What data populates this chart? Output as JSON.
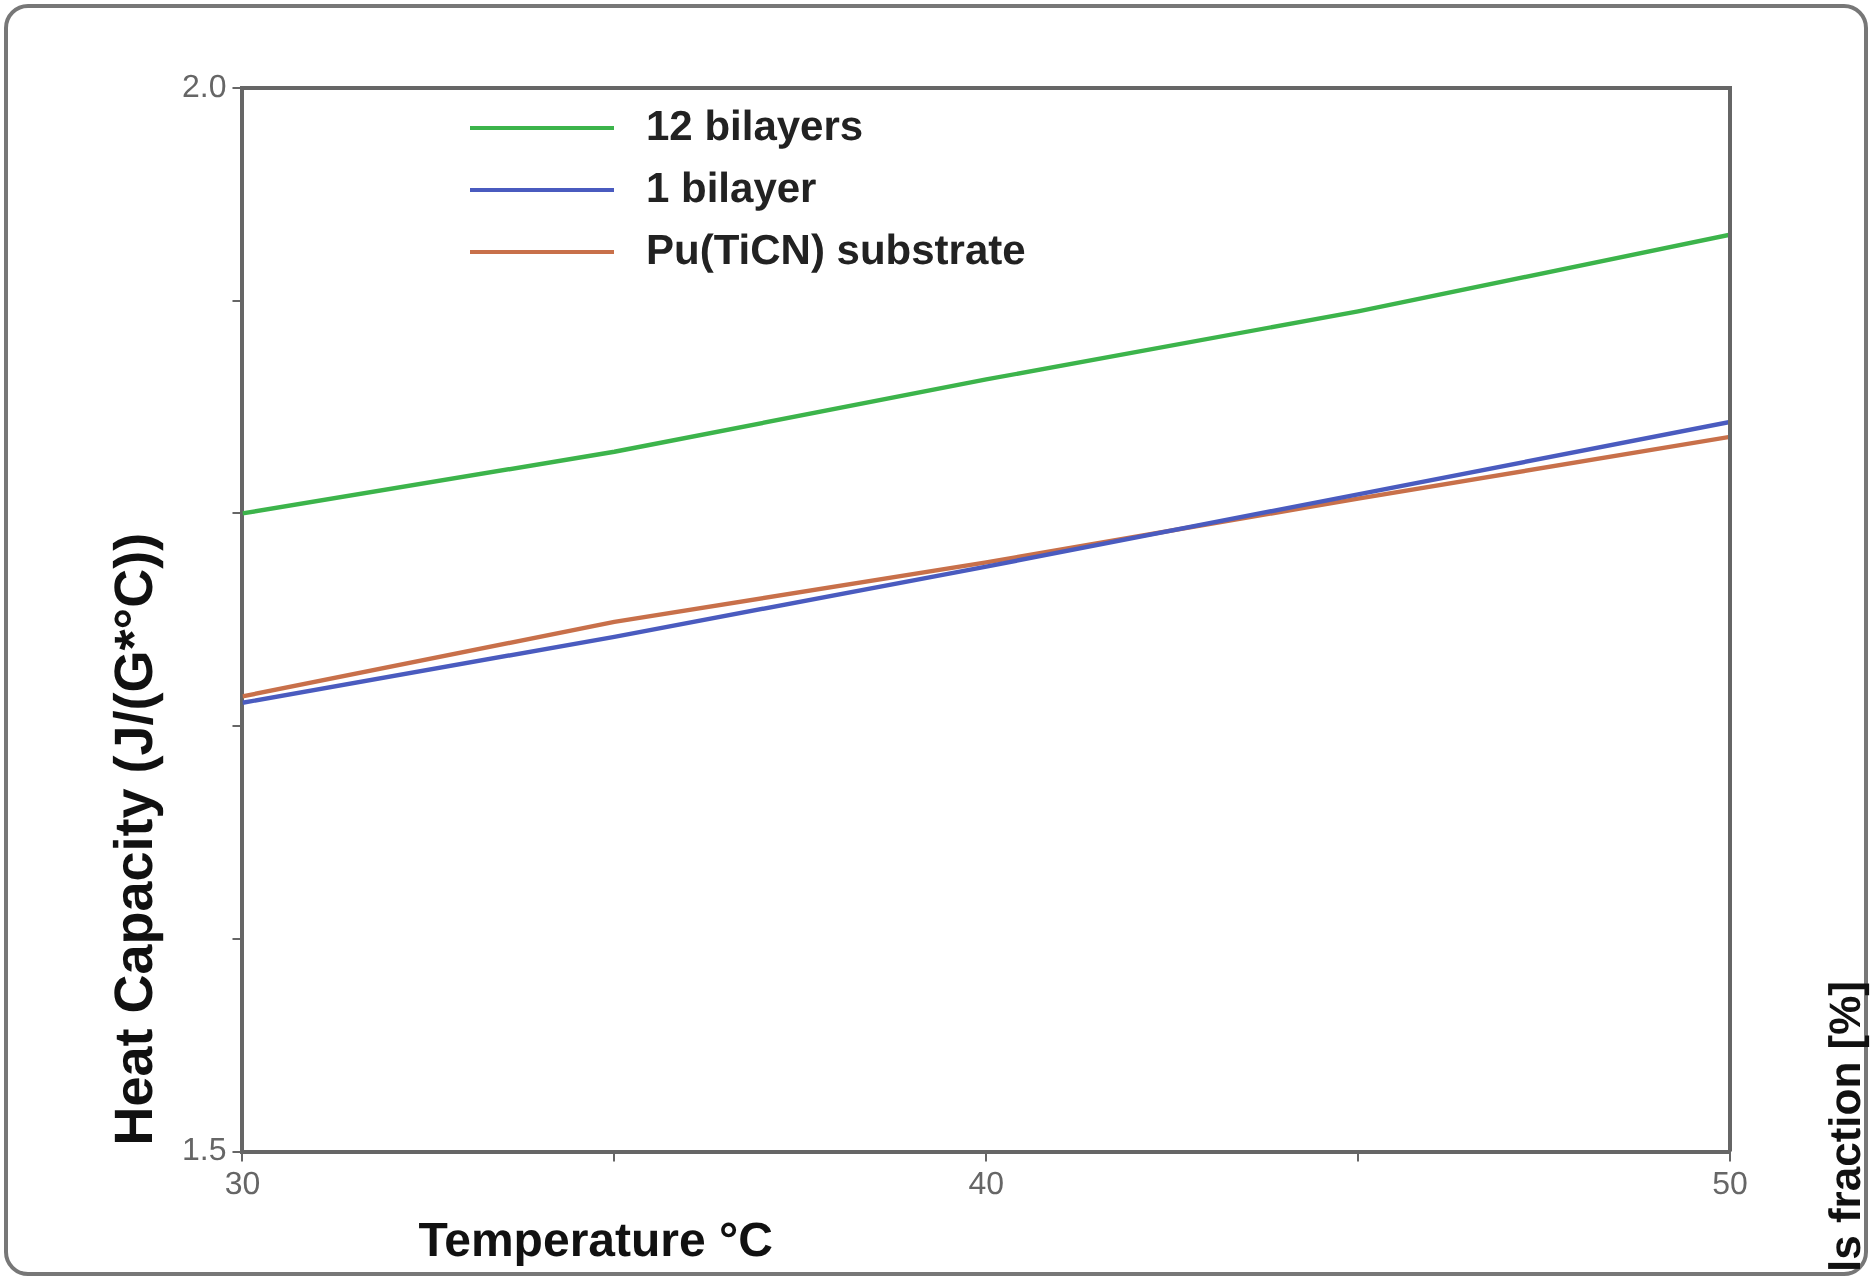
{
  "chart_data": {
    "type": "line",
    "xlabel": "Temperature °C",
    "ylabel": "Heat Capacity (J/(G*°C))",
    "x": [
      30,
      35,
      40,
      45,
      50
    ],
    "series": [
      {
        "name": "12 bilayers",
        "color": "#3cb44b",
        "values": [
          1.8,
          1.829,
          1.863,
          1.895,
          1.931
        ]
      },
      {
        "name": "1 bilayer",
        "color": "#4a5bbf",
        "values": [
          1.711,
          1.742,
          1.775,
          1.809,
          1.843
        ]
      },
      {
        "name": "Pu(TiCN) substrate",
        "color": "#c8704a",
        "values": [
          1.714,
          1.749,
          1.777,
          1.807,
          1.836
        ]
      }
    ],
    "xlim": [
      30,
      50
    ],
    "xticks": [
      30,
      {
        "value": 35,
        "label": null
      },
      40,
      {
        "value": 45,
        "label": null
      },
      50
    ],
    "ylim": [
      1.5,
      2.0
    ],
    "yticks": [
      {
        "value": 1.5,
        "label": "1.5"
      },
      {
        "value": 1.6,
        "label": null
      },
      {
        "value": 1.7,
        "label": null
      },
      {
        "value": 1.8,
        "label": null
      },
      {
        "value": 1.9,
        "label": null
      },
      {
        "value": 2.0,
        "label": "2.0"
      }
    ],
    "legend": "top left",
    "marker": "none",
    "line_style": "solid",
    "annotations": [
      "ls fraction [%]"
    ]
  }
}
